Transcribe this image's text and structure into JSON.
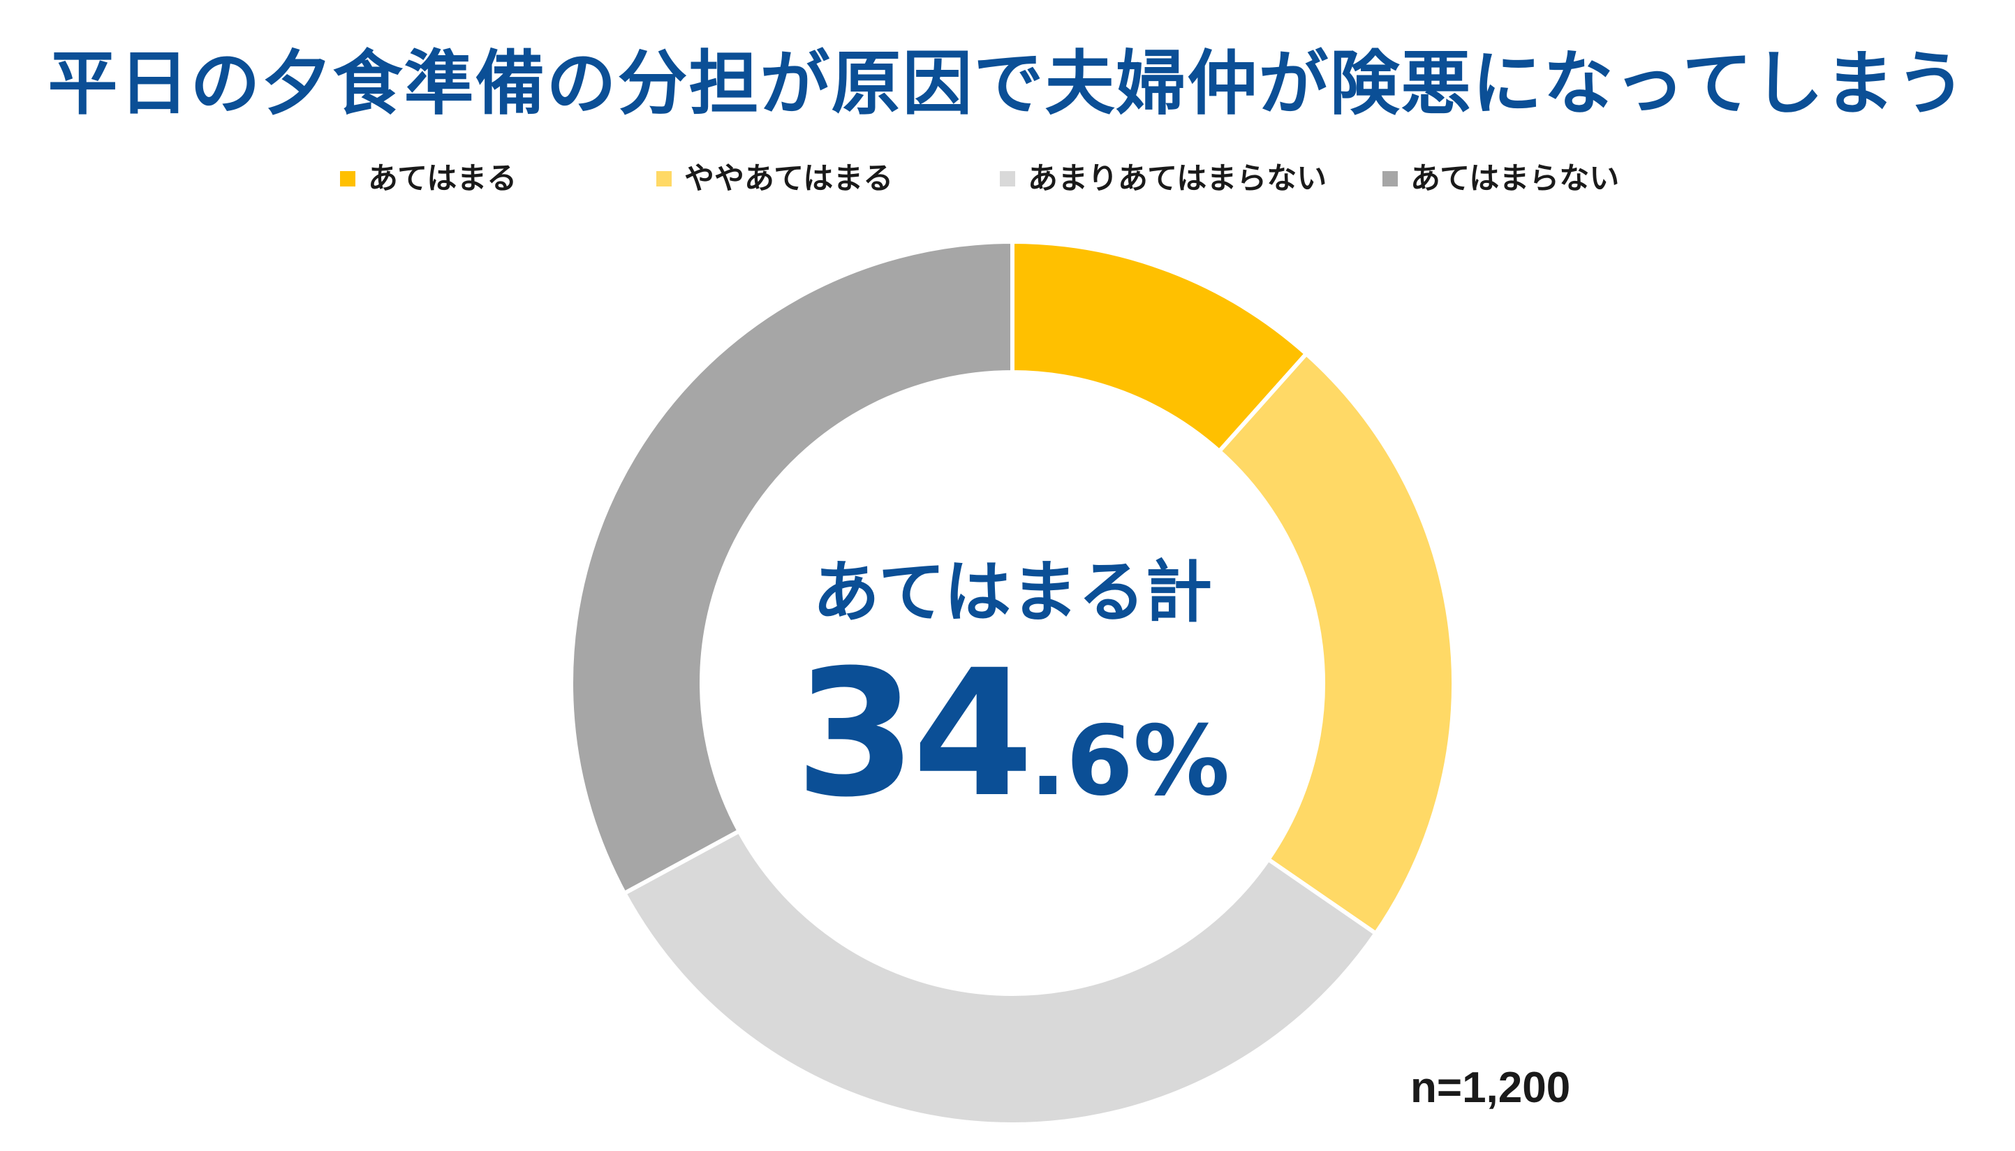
{
  "title": "平日の夕食準備の分担が原因で夫婦仲が険悪になってしまう",
  "center": {
    "label": "あてはまる計",
    "value_int": "34",
    "value_dec": ".6%"
  },
  "sample_size": "n=1,200",
  "chart_data": {
    "type": "pie",
    "donut": true,
    "title": "平日の夕食準備の分担が原因で夫婦仲が険悪になってしまう",
    "legend_position": "top",
    "categories": [
      "あてはまる",
      "ややあてはまる",
      "あまりあてはまらない",
      "あてはまらない"
    ],
    "values": [
      11.6,
      23.0,
      32.5,
      32.9
    ],
    "colors": [
      "#ffc000",
      "#ffd966",
      "#d9d9d9",
      "#a6a6a6"
    ],
    "total_label": "あてはまる計",
    "total_value": 34.6,
    "n_label": "n=1,200"
  }
}
